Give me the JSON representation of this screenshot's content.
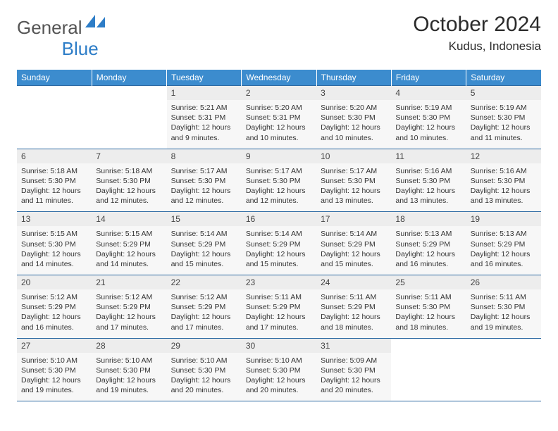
{
  "brand": {
    "word1": "General",
    "word2": "Blue"
  },
  "title": "October 2024",
  "location": "Kudus, Indonesia",
  "colors": {
    "header_blue": "#3c8cce",
    "rule_blue": "#2d6aa3",
    "num_bg": "#ededed",
    "body_bg": "#f7f7f7",
    "text": "#333333",
    "brand_blue": "#2d7dc7",
    "brand_grey": "#555555"
  },
  "day_headers": [
    "Sunday",
    "Monday",
    "Tuesday",
    "Wednesday",
    "Thursday",
    "Friday",
    "Saturday"
  ],
  "weeks": [
    [
      null,
      null,
      {
        "n": "1",
        "l1": "Sunrise: 5:21 AM",
        "l2": "Sunset: 5:31 PM",
        "l3": "Daylight: 12 hours",
        "l4": "and 9 minutes."
      },
      {
        "n": "2",
        "l1": "Sunrise: 5:20 AM",
        "l2": "Sunset: 5:31 PM",
        "l3": "Daylight: 12 hours",
        "l4": "and 10 minutes."
      },
      {
        "n": "3",
        "l1": "Sunrise: 5:20 AM",
        "l2": "Sunset: 5:30 PM",
        "l3": "Daylight: 12 hours",
        "l4": "and 10 minutes."
      },
      {
        "n": "4",
        "l1": "Sunrise: 5:19 AM",
        "l2": "Sunset: 5:30 PM",
        "l3": "Daylight: 12 hours",
        "l4": "and 10 minutes."
      },
      {
        "n": "5",
        "l1": "Sunrise: 5:19 AM",
        "l2": "Sunset: 5:30 PM",
        "l3": "Daylight: 12 hours",
        "l4": "and 11 minutes."
      }
    ],
    [
      {
        "n": "6",
        "l1": "Sunrise: 5:18 AM",
        "l2": "Sunset: 5:30 PM",
        "l3": "Daylight: 12 hours",
        "l4": "and 11 minutes."
      },
      {
        "n": "7",
        "l1": "Sunrise: 5:18 AM",
        "l2": "Sunset: 5:30 PM",
        "l3": "Daylight: 12 hours",
        "l4": "and 12 minutes."
      },
      {
        "n": "8",
        "l1": "Sunrise: 5:17 AM",
        "l2": "Sunset: 5:30 PM",
        "l3": "Daylight: 12 hours",
        "l4": "and 12 minutes."
      },
      {
        "n": "9",
        "l1": "Sunrise: 5:17 AM",
        "l2": "Sunset: 5:30 PM",
        "l3": "Daylight: 12 hours",
        "l4": "and 12 minutes."
      },
      {
        "n": "10",
        "l1": "Sunrise: 5:17 AM",
        "l2": "Sunset: 5:30 PM",
        "l3": "Daylight: 12 hours",
        "l4": "and 13 minutes."
      },
      {
        "n": "11",
        "l1": "Sunrise: 5:16 AM",
        "l2": "Sunset: 5:30 PM",
        "l3": "Daylight: 12 hours",
        "l4": "and 13 minutes."
      },
      {
        "n": "12",
        "l1": "Sunrise: 5:16 AM",
        "l2": "Sunset: 5:30 PM",
        "l3": "Daylight: 12 hours",
        "l4": "and 13 minutes."
      }
    ],
    [
      {
        "n": "13",
        "l1": "Sunrise: 5:15 AM",
        "l2": "Sunset: 5:30 PM",
        "l3": "Daylight: 12 hours",
        "l4": "and 14 minutes."
      },
      {
        "n": "14",
        "l1": "Sunrise: 5:15 AM",
        "l2": "Sunset: 5:29 PM",
        "l3": "Daylight: 12 hours",
        "l4": "and 14 minutes."
      },
      {
        "n": "15",
        "l1": "Sunrise: 5:14 AM",
        "l2": "Sunset: 5:29 PM",
        "l3": "Daylight: 12 hours",
        "l4": "and 15 minutes."
      },
      {
        "n": "16",
        "l1": "Sunrise: 5:14 AM",
        "l2": "Sunset: 5:29 PM",
        "l3": "Daylight: 12 hours",
        "l4": "and 15 minutes."
      },
      {
        "n": "17",
        "l1": "Sunrise: 5:14 AM",
        "l2": "Sunset: 5:29 PM",
        "l3": "Daylight: 12 hours",
        "l4": "and 15 minutes."
      },
      {
        "n": "18",
        "l1": "Sunrise: 5:13 AM",
        "l2": "Sunset: 5:29 PM",
        "l3": "Daylight: 12 hours",
        "l4": "and 16 minutes."
      },
      {
        "n": "19",
        "l1": "Sunrise: 5:13 AM",
        "l2": "Sunset: 5:29 PM",
        "l3": "Daylight: 12 hours",
        "l4": "and 16 minutes."
      }
    ],
    [
      {
        "n": "20",
        "l1": "Sunrise: 5:12 AM",
        "l2": "Sunset: 5:29 PM",
        "l3": "Daylight: 12 hours",
        "l4": "and 16 minutes."
      },
      {
        "n": "21",
        "l1": "Sunrise: 5:12 AM",
        "l2": "Sunset: 5:29 PM",
        "l3": "Daylight: 12 hours",
        "l4": "and 17 minutes."
      },
      {
        "n": "22",
        "l1": "Sunrise: 5:12 AM",
        "l2": "Sunset: 5:29 PM",
        "l3": "Daylight: 12 hours",
        "l4": "and 17 minutes."
      },
      {
        "n": "23",
        "l1": "Sunrise: 5:11 AM",
        "l2": "Sunset: 5:29 PM",
        "l3": "Daylight: 12 hours",
        "l4": "and 17 minutes."
      },
      {
        "n": "24",
        "l1": "Sunrise: 5:11 AM",
        "l2": "Sunset: 5:29 PM",
        "l3": "Daylight: 12 hours",
        "l4": "and 18 minutes."
      },
      {
        "n": "25",
        "l1": "Sunrise: 5:11 AM",
        "l2": "Sunset: 5:30 PM",
        "l3": "Daylight: 12 hours",
        "l4": "and 18 minutes."
      },
      {
        "n": "26",
        "l1": "Sunrise: 5:11 AM",
        "l2": "Sunset: 5:30 PM",
        "l3": "Daylight: 12 hours",
        "l4": "and 19 minutes."
      }
    ],
    [
      {
        "n": "27",
        "l1": "Sunrise: 5:10 AM",
        "l2": "Sunset: 5:30 PM",
        "l3": "Daylight: 12 hours",
        "l4": "and 19 minutes."
      },
      {
        "n": "28",
        "l1": "Sunrise: 5:10 AM",
        "l2": "Sunset: 5:30 PM",
        "l3": "Daylight: 12 hours",
        "l4": "and 19 minutes."
      },
      {
        "n": "29",
        "l1": "Sunrise: 5:10 AM",
        "l2": "Sunset: 5:30 PM",
        "l3": "Daylight: 12 hours",
        "l4": "and 20 minutes."
      },
      {
        "n": "30",
        "l1": "Sunrise: 5:10 AM",
        "l2": "Sunset: 5:30 PM",
        "l3": "Daylight: 12 hours",
        "l4": "and 20 minutes."
      },
      {
        "n": "31",
        "l1": "Sunrise: 5:09 AM",
        "l2": "Sunset: 5:30 PM",
        "l3": "Daylight: 12 hours",
        "l4": "and 20 minutes."
      },
      null,
      null
    ]
  ]
}
